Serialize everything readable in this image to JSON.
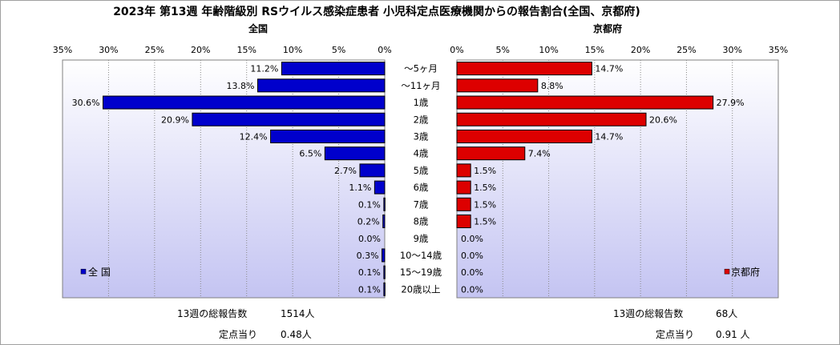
{
  "title": "2023年 第13週 年齢階級別 RSウイルス感染症患者 小児科定点医療機関からの報告割合(全国、京都府)",
  "colors": {
    "left_bar": "#0000cc",
    "right_bar": "#dd0000",
    "plot_bg_top": "#ffffff",
    "plot_bg_bottom": "#c4c4f2"
  },
  "chart_data": {
    "type": "bar",
    "orientation": "horizontal-butterfly",
    "categories": [
      "～5ヶ月",
      "～11ヶ月",
      "1歳",
      "2歳",
      "3歳",
      "4歳",
      "5歳",
      "6歳",
      "7歳",
      "8歳",
      "9歳",
      "10～14歳",
      "15～19歳",
      "20歳以上"
    ],
    "x_ticks": [
      "0%",
      "5%",
      "10%",
      "15%",
      "20%",
      "25%",
      "30%",
      "35%"
    ],
    "xlim": [
      0,
      35
    ],
    "series": [
      {
        "name": "全 国",
        "panel_title": "全国",
        "values": [
          11.2,
          13.8,
          30.6,
          20.9,
          12.4,
          6.5,
          2.7,
          1.1,
          0.1,
          0.2,
          0.0,
          0.3,
          0.1,
          0.1
        ],
        "labels": [
          "11.2%",
          "13.8%",
          "30.6%",
          "20.9%",
          "12.4%",
          "6.5%",
          "2.7%",
          "1.1%",
          "0.1%",
          "0.2%",
          "0.0%",
          "0.3%",
          "0.1%",
          "0.1%"
        ]
      },
      {
        "name": "京都府",
        "panel_title": "京都府",
        "values": [
          14.7,
          8.8,
          27.9,
          20.6,
          14.7,
          7.4,
          1.5,
          1.5,
          1.5,
          1.5,
          0.0,
          0.0,
          0.0,
          0.0
        ],
        "labels": [
          "14.7%",
          "8.8%",
          "27.9%",
          "20.6%",
          "14.7%",
          "7.4%",
          "1.5%",
          "1.5%",
          "1.5%",
          "1.5%",
          "0.0%",
          "0.0%",
          "0.0%",
          "0.0%"
        ]
      }
    ]
  },
  "footer": {
    "left": {
      "total_label": "13週の総報告数",
      "total_value": "1514人",
      "per_label": "定点当り",
      "per_value": "0.48人"
    },
    "right": {
      "total_label": "13週の総報告数",
      "total_value": "68人",
      "per_label": "定点当り",
      "per_value": "0.91 人"
    }
  }
}
